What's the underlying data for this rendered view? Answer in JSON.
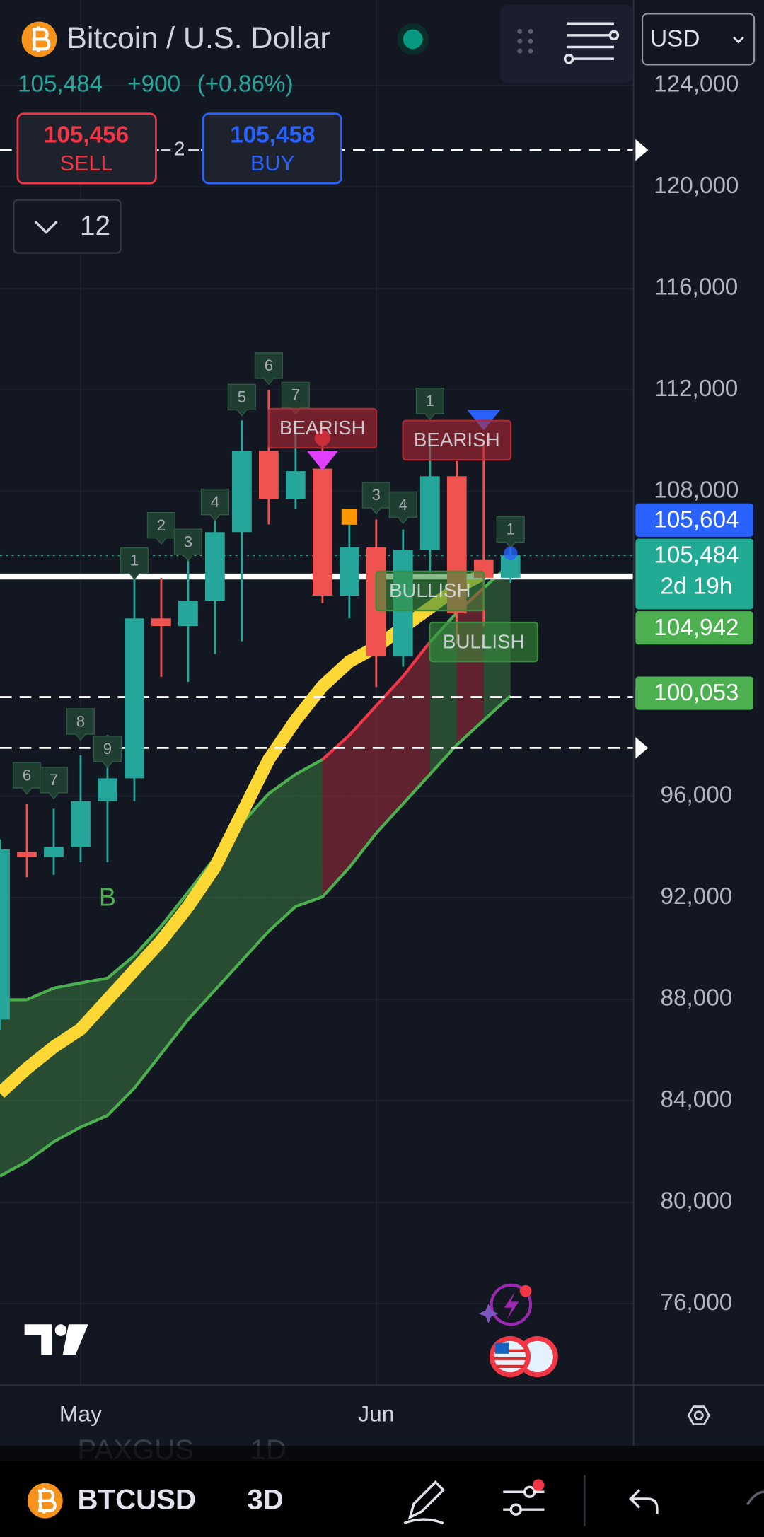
{
  "header": {
    "title": "Bitcoin / U.S. Dollar",
    "last": "105,484",
    "change": "+900",
    "change_pct": "(+0.86%)",
    "sell_price": "105,456",
    "sell_label": "SELL",
    "buy_price": "105,458",
    "buy_label": "BUY",
    "spread": "2",
    "indicator_count": "12",
    "currency": "USD"
  },
  "chart_data": {
    "type": "candlestick",
    "categories": [
      null,
      null,
      null,
      "May",
      null,
      null,
      null,
      null,
      null,
      null,
      null,
      null,
      null,
      null,
      "Jun",
      null,
      null,
      null,
      null,
      null
    ],
    "open": [
      87200,
      93800,
      93600,
      94000,
      95800,
      96700,
      103000,
      102700,
      103700,
      106400,
      109600,
      107700,
      108900,
      103900,
      105800,
      101500,
      105700,
      108600,
      105300,
      104600
    ],
    "high": [
      94300,
      95700,
      95500,
      97600,
      98400,
      104800,
      104600,
      105300,
      107300,
      110800,
      112000,
      110800,
      110400,
      106700,
      106900,
      106500,
      110200,
      109200,
      109800,
      105800
    ],
    "low": [
      86800,
      92800,
      92900,
      93400,
      93400,
      95800,
      100700,
      100500,
      101600,
      102100,
      106700,
      107300,
      103600,
      103000,
      100300,
      101100,
      104800,
      102000,
      102700,
      104400
    ],
    "close": [
      93900,
      93600,
      94000,
      95800,
      96700,
      103000,
      102700,
      103700,
      106400,
      109600,
      107700,
      108800,
      103900,
      105800,
      101500,
      105700,
      108600,
      103200,
      104600,
      105484
    ],
    "up_color": "#26a69a",
    "down_color": "#ef5350",
    "band_upper": [
      87980,
      87980,
      88440,
      88640,
      88830,
      89720,
      90880,
      92220,
      93580,
      94930,
      96100,
      96860,
      97440,
      98400,
      99560,
      100720,
      102070,
      103230,
      104200,
      105160
    ],
    "band_lower": [
      81030,
      81610,
      82380,
      82960,
      83420,
      84500,
      85850,
      87200,
      88360,
      89520,
      90680,
      91650,
      92030,
      93190,
      94540,
      95700,
      96860,
      98020,
      98990,
      99950
    ],
    "band_lower_color": "#4caf50",
    "segment_colors": [
      "#4caf50",
      "#4caf50",
      "#4caf50",
      "#4caf50",
      "#4caf50",
      "#4caf50",
      "#4caf50",
      "#4caf50",
      "#4caf50",
      "#4caf50",
      "#4caf50",
      "#4caf50",
      "#f23645",
      "#f23645",
      "#f23645",
      "#f23645",
      "#4caf50",
      "#f23645",
      "#4caf50"
    ],
    "trend_line": {
      "color": "#fdd835",
      "values": [
        84300,
        85270,
        86120,
        86820,
        87980,
        89140,
        90300,
        91650,
        93200,
        95320,
        97440,
        98990,
        100330,
        101300,
        101880,
        102650,
        103420,
        104200,
        104770,
        null
      ]
    },
    "ylim": [
      72800,
      127360
    ],
    "yticks": [
      {
        "value": 124000,
        "label": "124,000"
      },
      {
        "value": 120000,
        "label": "120,000"
      },
      {
        "value": 116000,
        "label": "116,000"
      },
      {
        "value": 112000,
        "label": "112,000"
      },
      {
        "value": 108000,
        "label": "108,000"
      },
      {
        "value": 96000,
        "label": "96,000"
      },
      {
        "value": 92000,
        "label": "92,000"
      },
      {
        "value": 88000,
        "label": "88,000"
      },
      {
        "value": 84000,
        "label": "84,000"
      },
      {
        "value": 80000,
        "label": "80,000"
      },
      {
        "value": 76000,
        "label": "76,000"
      }
    ],
    "grid": true,
    "levels": [
      {
        "value": 121450,
        "style": "dashed"
      },
      {
        "value": 99900,
        "style": "dashed"
      },
      {
        "value": 97900,
        "style": "dashed"
      },
      {
        "value": 104650,
        "style": "solid"
      }
    ],
    "price_tags": [
      {
        "value": 105604,
        "label": "105,604",
        "color": "#2962ff"
      },
      {
        "value": 105484,
        "label": "105,484",
        "sublabel": "2d 19h",
        "color": "#22ab94"
      },
      {
        "value": 104942,
        "label": "104,942",
        "color": "#4caf50"
      },
      {
        "value": 100053,
        "label": "100,053",
        "color": "#4caf50"
      }
    ],
    "count_color": "#1f3d30",
    "counts": [
      {
        "text": "6",
        "index": 1,
        "y": 96780
      },
      {
        "text": "7",
        "index": 2,
        "y": 96590
      },
      {
        "text": "8",
        "index": 3,
        "y": 98900
      },
      {
        "text": "9",
        "index": 4,
        "y": 97820
      },
      {
        "text": "1",
        "index": 5,
        "y": 105240
      },
      {
        "text": "2",
        "index": 6,
        "y": 106630
      },
      {
        "text": "3",
        "index": 7,
        "y": 105970
      },
      {
        "text": "4",
        "index": 8,
        "y": 107550
      },
      {
        "text": "5",
        "index": 9,
        "y": 111680
      },
      {
        "text": "6",
        "index": 10,
        "y": 112920
      },
      {
        "text": "7",
        "index": 11,
        "y": 111760
      },
      {
        "text": "3",
        "index": 14,
        "y": 107820
      },
      {
        "text": "4",
        "index": 15,
        "y": 107440
      },
      {
        "text": "1",
        "index": 16,
        "y": 111530
      },
      {
        "text": "1",
        "index": 19,
        "y": 106470
      }
    ],
    "signals": [
      {
        "text": "BEARISH",
        "index": 12,
        "y": 110490,
        "color": "#b22833"
      },
      {
        "text": "BEARISH",
        "index": 17,
        "y": 110020,
        "color": "#b22833"
      },
      {
        "text": "BULLISH",
        "index": 16,
        "y": 104080,
        "color": "#388e3c"
      },
      {
        "text": "BULLISH",
        "index": 18,
        "y": 102070,
        "color": "#388e3c"
      }
    ],
    "markers": [
      {
        "text": "B",
        "index": 4,
        "y": 91950,
        "color": "#4caf50"
      }
    ]
  },
  "footer": {
    "symbol": "BTCUSD",
    "interval": "3D",
    "ghost_symbol": "PAXGUS",
    "ghost_interval": "1D"
  }
}
